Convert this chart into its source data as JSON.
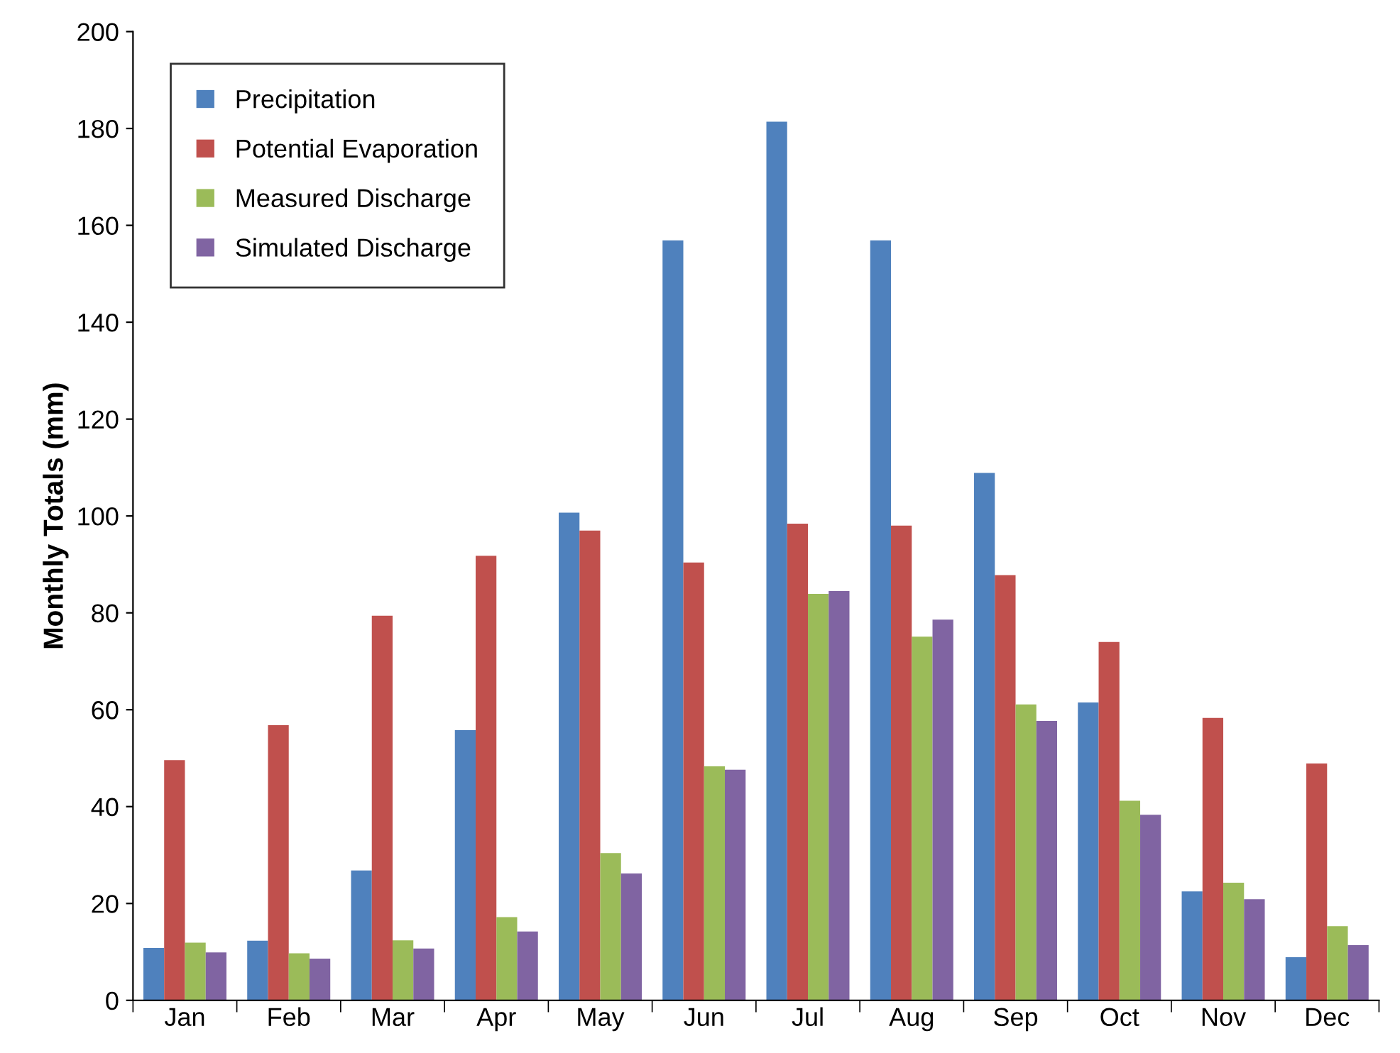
{
  "chart_data": {
    "type": "bar",
    "ylabel": "Monthly Totals (mm)",
    "categories": [
      "Jan",
      "Feb",
      "Mar",
      "Apr",
      "May",
      "Jun",
      "Jul",
      "Aug",
      "Sep",
      "Oct",
      "Nov",
      "Dec"
    ],
    "series": [
      {
        "name": "Precipitation",
        "color": "#4f81bd",
        "values": [
          10.8,
          12.3,
          26.8,
          55.8,
          100.7,
          156.9,
          181.4,
          156.9,
          108.9,
          61.5,
          22.5,
          8.9
        ]
      },
      {
        "name": "Potential Evaporation",
        "color": "#c0504d",
        "values": [
          49.6,
          56.8,
          79.4,
          91.8,
          97.0,
          90.4,
          98.4,
          98.0,
          87.8,
          74.0,
          58.3,
          48.9
        ]
      },
      {
        "name": "Measured Discharge",
        "color": "#9bbb59",
        "values": [
          11.9,
          9.7,
          12.4,
          17.2,
          30.4,
          48.3,
          83.9,
          75.1,
          61.1,
          41.2,
          24.3,
          15.3
        ]
      },
      {
        "name": "Simulated Discharge",
        "color": "#8064a2",
        "values": [
          9.9,
          8.6,
          10.7,
          14.2,
          26.2,
          47.6,
          84.5,
          78.6,
          57.7,
          38.3,
          20.9,
          11.4
        ]
      }
    ],
    "ylim": [
      0,
      200
    ],
    "yticks": [
      0,
      20,
      40,
      60,
      80,
      100,
      120,
      140,
      160,
      180,
      200
    ],
    "grid": false,
    "legend": "top left"
  }
}
